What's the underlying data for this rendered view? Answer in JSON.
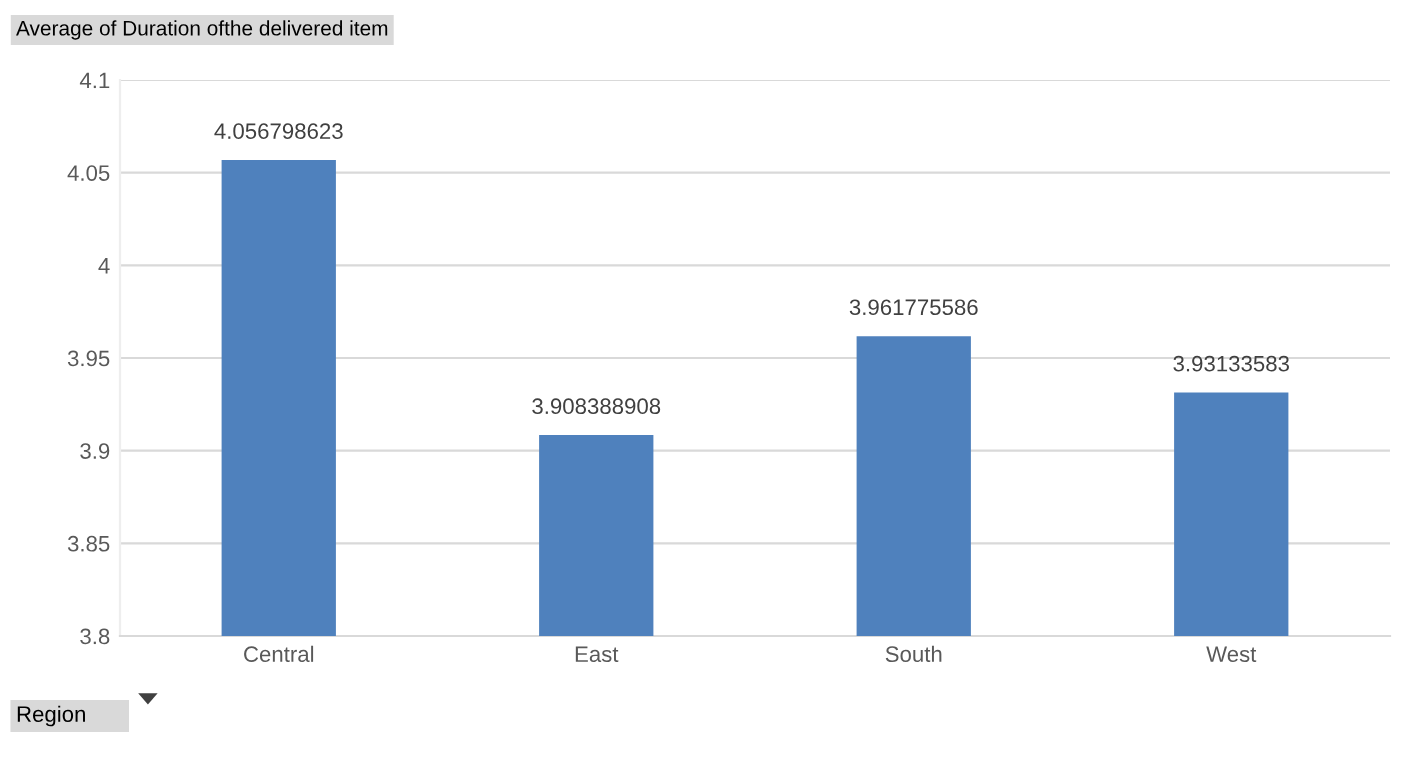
{
  "chart_data": {
    "type": "bar",
    "title": "Average of Duration ofthe delivered item",
    "xlabel": "Region",
    "categories": [
      "Central",
      "East",
      "South",
      "West"
    ],
    "values": [
      4.056798623,
      3.908388908,
      3.961775586,
      3.93133583
    ],
    "color": "#4f81bd",
    "ylim": [
      3.8,
      4.1
    ],
    "yticks": [
      3.8,
      3.85,
      3.9,
      3.95,
      4,
      4.05,
      4.1
    ],
    "grid": "y",
    "data_labels": true,
    "legend": false
  }
}
